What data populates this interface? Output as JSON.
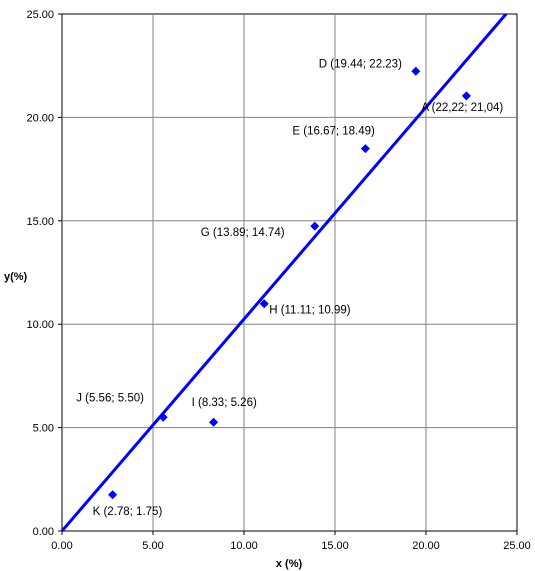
{
  "chart_data": {
    "type": "scatter",
    "xlabel": "x (%)",
    "ylabel": "y(%)",
    "xlim": [
      0,
      25
    ],
    "ylim": [
      0,
      25
    ],
    "x_ticks": [
      "0.00",
      "5.00",
      "10.00",
      "15.00",
      "20.00",
      "25.00"
    ],
    "y_ticks": [
      "0.00",
      "5.00",
      "10.00",
      "15.00",
      "20.00",
      "25.00"
    ],
    "grid": true,
    "legend": "none",
    "marker_color": "#0000ff",
    "line_color": "#0000ff",
    "points": [
      {
        "label": "A (22,22; 21,04)",
        "x": 22.22,
        "y": 21.04
      },
      {
        "label": "D (19.44; 22.23)",
        "x": 19.44,
        "y": 22.23
      },
      {
        "label": "E (16.67; 18.49)",
        "x": 16.67,
        "y": 18.49
      },
      {
        "label": "G (13.89; 14.74)",
        "x": 13.89,
        "y": 14.74
      },
      {
        "label": "H (11.11; 10.99)",
        "x": 11.11,
        "y": 10.99
      },
      {
        "label": "I (8.33; 5.26)",
        "x": 8.33,
        "y": 5.26
      },
      {
        "label": "J (5.56; 5.50)",
        "x": 5.56,
        "y": 5.5
      },
      {
        "label": "K (2.78; 1.75)",
        "x": 2.78,
        "y": 1.75
      }
    ],
    "trendline": {
      "x": [
        0,
        24.4
      ],
      "y": [
        0,
        25
      ]
    }
  }
}
